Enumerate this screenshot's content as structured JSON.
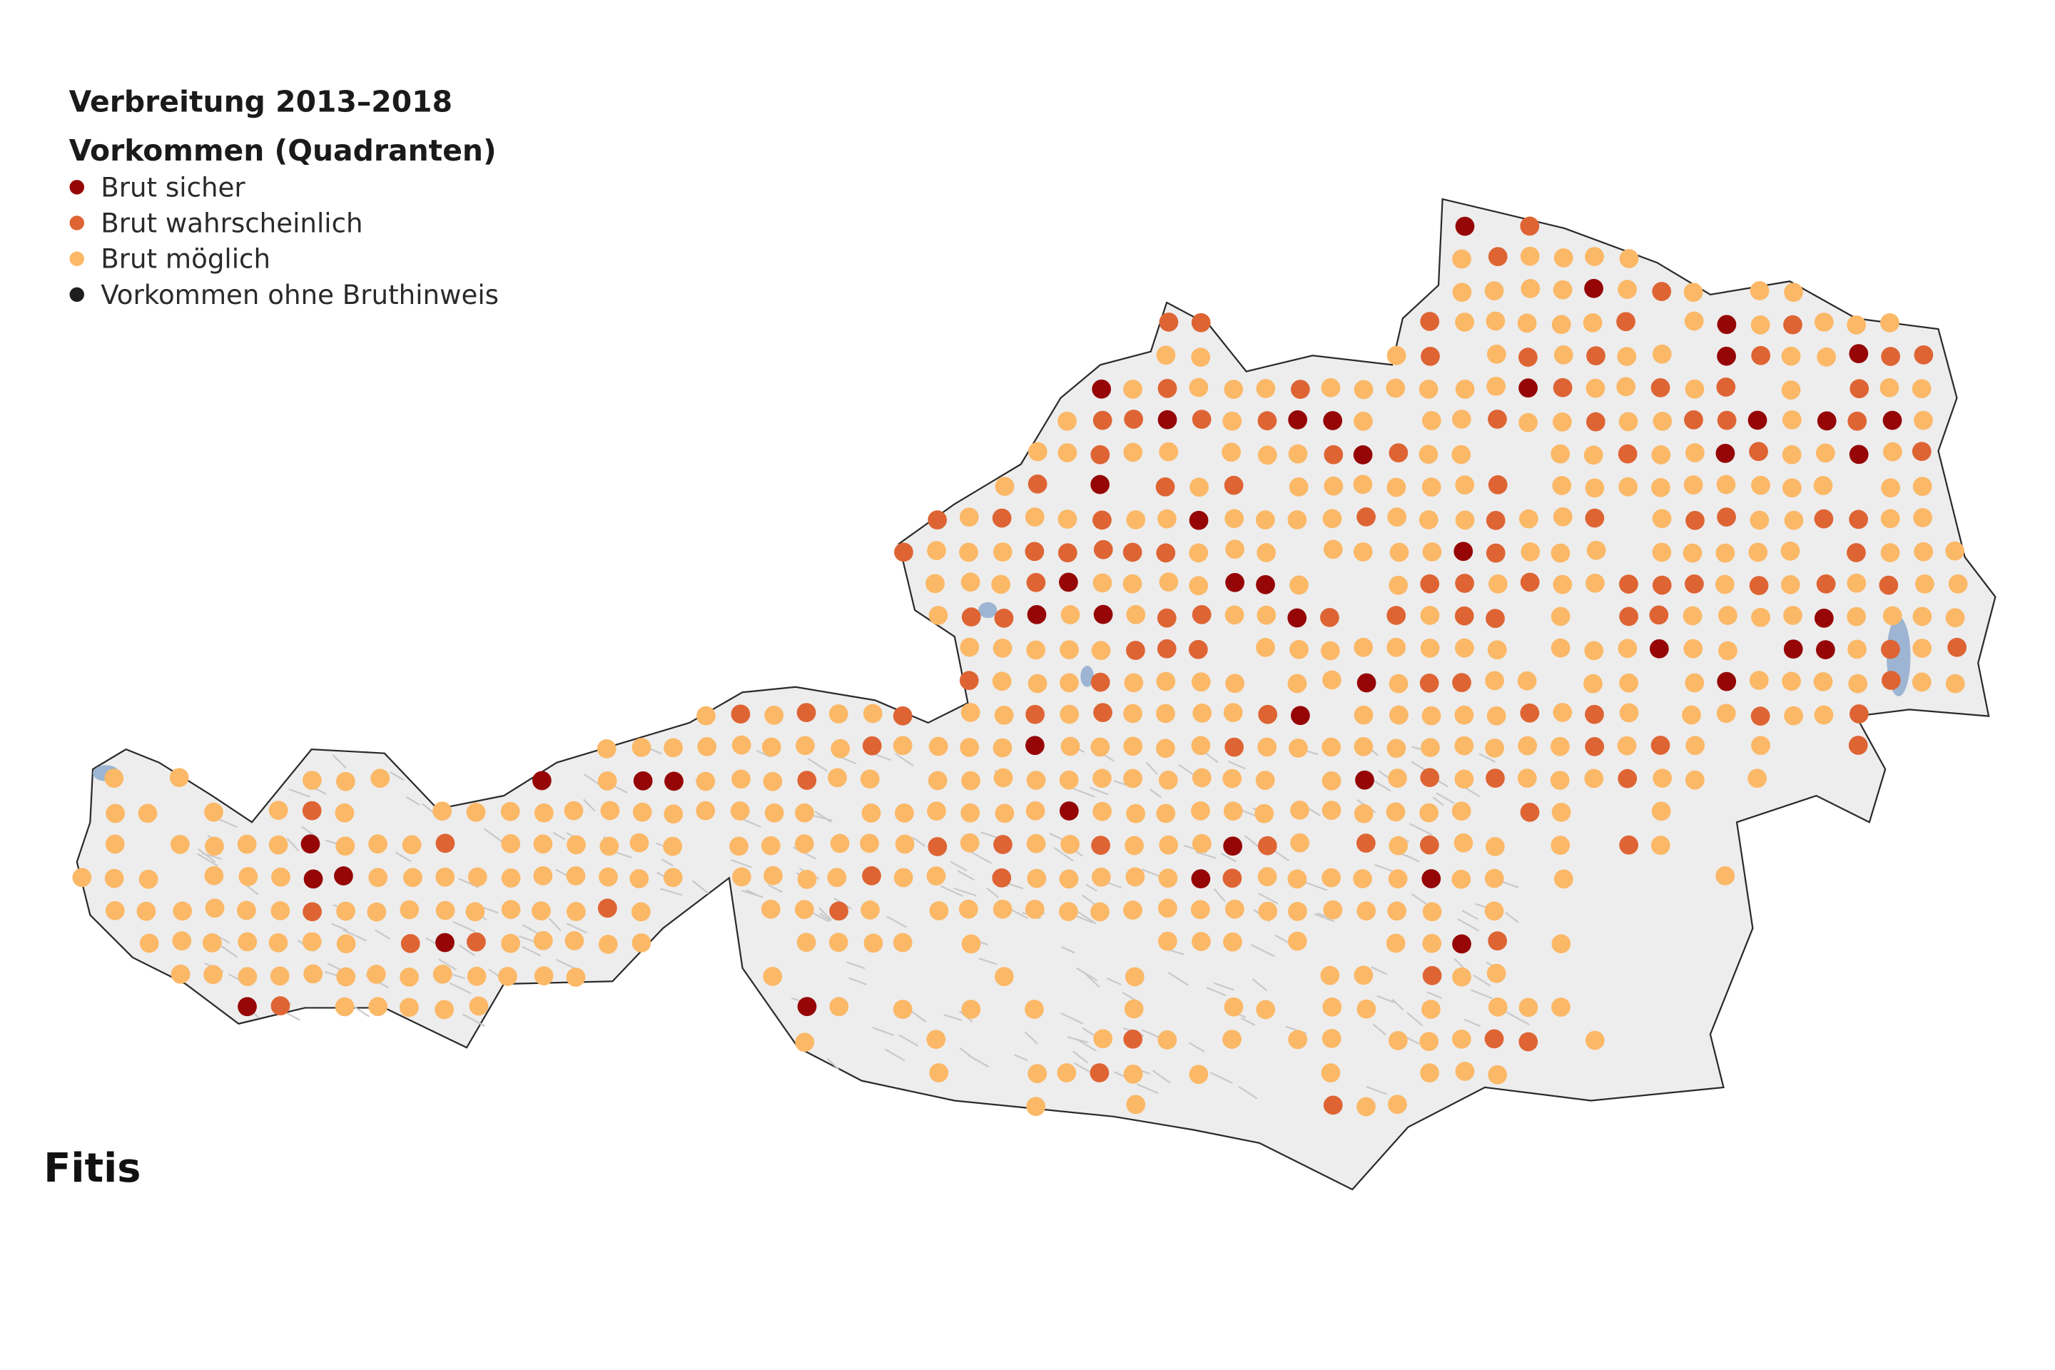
{
  "legend": {
    "title": "Verbreitung 2013–2018",
    "subtitle": "Vorkommen (Quadranten)",
    "items": [
      {
        "label": "Brut sicher",
        "color": "#960606"
      },
      {
        "label": "Brut wahrscheinlich",
        "color": "#de6434"
      },
      {
        "label": "Brut möglich",
        "color": "#fbb867"
      },
      {
        "label": "Vorkommen ohne Bruthinweis",
        "color": "#1e1e1e"
      }
    ]
  },
  "species": "Fitis"
}
